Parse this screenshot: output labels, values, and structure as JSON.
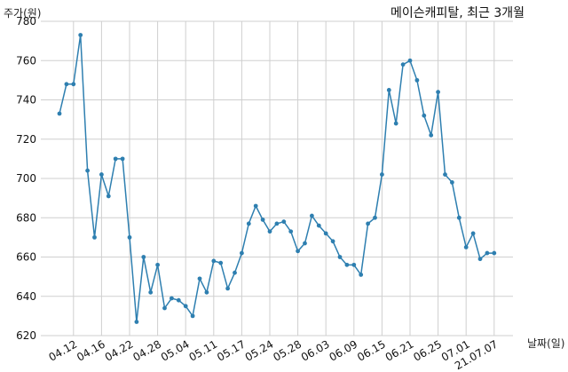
{
  "chart_data": {
    "type": "line",
    "title": "메이슨캐피탈, 최근 3개월",
    "ylabel": "주가(원)",
    "xlabel": "날짜(일)",
    "ylim": [
      620,
      780
    ],
    "yticks": [
      620,
      640,
      660,
      680,
      700,
      720,
      740,
      760,
      780
    ],
    "grid": true,
    "line_color": "#2e7fb0",
    "xtick_labels": [
      "04.12",
      "04.16",
      "04.22",
      "04.28",
      "05.04",
      "05.11",
      "05.17",
      "05.24",
      "05.28",
      "06.03",
      "06.09",
      "06.15",
      "06.21",
      "06.25",
      "07.01",
      "21.07.07"
    ],
    "xtick_index": [
      2,
      6,
      10,
      14,
      18,
      22,
      26,
      30,
      34,
      38,
      42,
      46,
      50,
      54,
      58,
      62
    ],
    "values": [
      733,
      748,
      748,
      773,
      704,
      670,
      702,
      691,
      710,
      710,
      670,
      627,
      660,
      642,
      656,
      634,
      639,
      638,
      635,
      630,
      649,
      642,
      658,
      657,
      644,
      652,
      662,
      677,
      686,
      679,
      673,
      677,
      678,
      673,
      663,
      667,
      681,
      676,
      672,
      668,
      660,
      656,
      656,
      651,
      677,
      680,
      702,
      745,
      728,
      758,
      760,
      750,
      732,
      722,
      744,
      702,
      698,
      680,
      665,
      672,
      659,
      662,
      662
    ]
  }
}
